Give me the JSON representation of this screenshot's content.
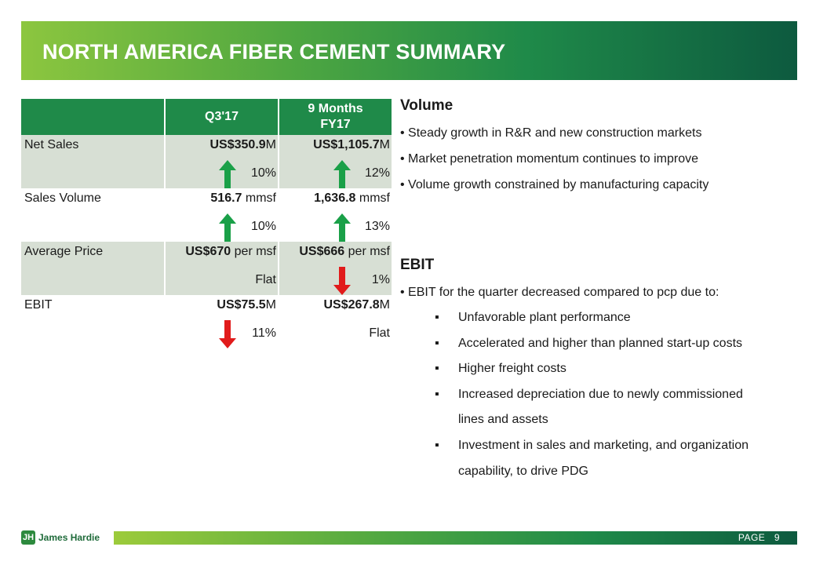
{
  "title": "NORTH AMERICA FIBER CEMENT SUMMARY",
  "table": {
    "headers": [
      "",
      "Q3'17",
      "9 Months FY17"
    ],
    "header_q3": "Q3'17",
    "header_9m_line1": "9 Months",
    "header_9m_line2": "FY17",
    "rows": [
      {
        "label": "Net Sales",
        "q3_bold": "US$350.9",
        "q3_unit": "M",
        "q3_change": "10%",
        "q3_dir": "up",
        "m9_bold": "US$1,105.7",
        "m9_unit": "M",
        "m9_change": "12%",
        "m9_dir": "up"
      },
      {
        "label": "Sales Volume",
        "q3_bold": "516.7",
        "q3_unit": " mmsf",
        "q3_change": "10%",
        "q3_dir": "up",
        "m9_bold": "1,636.8",
        "m9_unit": " mmsf",
        "m9_change": "13%",
        "m9_dir": "up"
      },
      {
        "label": "Average Price",
        "q3_bold": "US$670",
        "q3_unit": " per msf",
        "q3_change": "Flat",
        "q3_dir": "none",
        "m9_bold": "US$666",
        "m9_unit": " per msf",
        "m9_change": "1%",
        "m9_dir": "down"
      },
      {
        "label": "EBIT",
        "q3_bold": "US$75.5",
        "q3_unit": "M",
        "q3_change": "11%",
        "q3_dir": "down",
        "m9_bold": "US$267.8",
        "m9_unit": "M",
        "m9_change": "Flat",
        "m9_dir": "none"
      }
    ]
  },
  "volume": {
    "heading": "Volume",
    "bullets": [
      "• Steady growth in R&R and new construction markets",
      "• Market penetration momentum continues to improve",
      "• Volume growth constrained by manufacturing capacity"
    ]
  },
  "ebit": {
    "heading": "EBIT",
    "bullet": "• EBIT for the quarter decreased compared to pcp due to:",
    "sub_marker": "▪",
    "sub_items": [
      "Unfavorable plant performance",
      "Accelerated and higher than planned start-up costs",
      "Higher freight costs",
      "Increased depreciation due to newly commissioned",
      "lines and assets",
      "Investment in sales and marketing, and organization",
      "capability, to drive PDG"
    ]
  },
  "footer": {
    "logo_mark": "JH",
    "logo_text": "James Hardie",
    "page_label": "PAGE",
    "page_number": "9"
  },
  "colors": {
    "up_arrow": "#1aa048",
    "down_arrow": "#e11b1b",
    "header_green": "#1f8a49"
  }
}
